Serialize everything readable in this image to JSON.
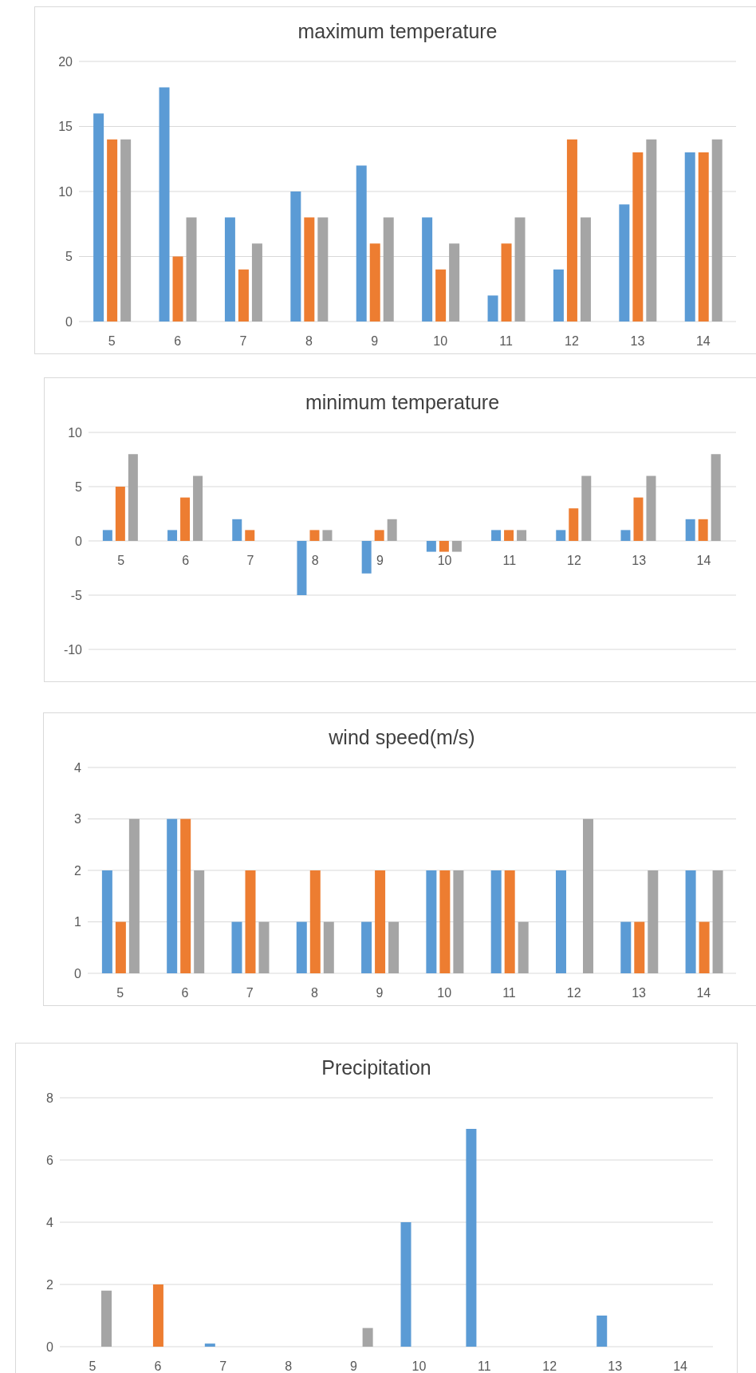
{
  "chart_data": [
    {
      "type": "bar",
      "title": "maximum temperature",
      "categories": [
        "5",
        "6",
        "7",
        "8",
        "9",
        "10",
        "11",
        "12",
        "13",
        "14"
      ],
      "series": [
        {
          "color": "#5b9bd5",
          "values": [
            16,
            18,
            8,
            10,
            12,
            8,
            2,
            4,
            9,
            13
          ]
        },
        {
          "color": "#ed7d31",
          "values": [
            14,
            5,
            4,
            8,
            6,
            4,
            6,
            14,
            13,
            13
          ]
        },
        {
          "color": "#a5a5a5",
          "values": [
            14,
            8,
            6,
            8,
            8,
            6,
            8,
            8,
            14,
            14
          ]
        }
      ],
      "ylim": [
        0,
        20
      ],
      "yticks": [
        0,
        5,
        10,
        15,
        20
      ],
      "grid": "y"
    },
    {
      "type": "bar",
      "title": "minimum temperature",
      "categories": [
        "5",
        "6",
        "7",
        "8",
        "9",
        "10",
        "11",
        "12",
        "13",
        "14"
      ],
      "series": [
        {
          "color": "#5b9bd5",
          "values": [
            1,
            1,
            2,
            -5,
            -3,
            -1,
            1,
            1,
            1,
            2
          ]
        },
        {
          "color": "#ed7d31",
          "values": [
            5,
            4,
            1,
            1,
            1,
            -1,
            1,
            3,
            4,
            2
          ]
        },
        {
          "color": "#a5a5a5",
          "values": [
            8,
            6,
            0,
            1,
            2,
            -1,
            1,
            6,
            6,
            8
          ]
        }
      ],
      "ylim": [
        -10,
        10
      ],
      "yticks": [
        -10,
        -5,
        0,
        5,
        10
      ],
      "grid": "y"
    },
    {
      "type": "bar",
      "title": "wind speed(m/s)",
      "categories": [
        "5",
        "6",
        "7",
        "8",
        "9",
        "10",
        "11",
        "12",
        "13",
        "14"
      ],
      "series": [
        {
          "color": "#5b9bd5",
          "values": [
            2,
            3,
            1,
            1,
            1,
            2,
            2,
            2,
            1,
            2
          ]
        },
        {
          "color": "#ed7d31",
          "values": [
            1,
            3,
            2,
            2,
            2,
            2,
            2,
            0,
            1,
            1
          ]
        },
        {
          "color": "#a5a5a5",
          "values": [
            3,
            2,
            1,
            1,
            1,
            2,
            1,
            3,
            2,
            2
          ]
        }
      ],
      "ylim": [
        0,
        4
      ],
      "yticks": [
        0,
        1,
        2,
        3,
        4
      ],
      "grid": "y"
    },
    {
      "type": "bar",
      "title": "Precipitation",
      "categories": [
        "5",
        "6",
        "7",
        "8",
        "9",
        "10",
        "11",
        "12",
        "13",
        "14"
      ],
      "series": [
        {
          "color": "#5b9bd5",
          "values": [
            0,
            0,
            0.1,
            0,
            0,
            4,
            7,
            0,
            1,
            0
          ]
        },
        {
          "color": "#ed7d31",
          "values": [
            0,
            2,
            0,
            0,
            0,
            0,
            0,
            0,
            0,
            0
          ]
        },
        {
          "color": "#a5a5a5",
          "values": [
            1.8,
            0,
            0,
            0,
            0.6,
            0,
            0,
            0,
            0,
            0
          ]
        }
      ],
      "ylim": [
        0,
        8
      ],
      "yticks": [
        0,
        2,
        4,
        6,
        8
      ],
      "grid": "y"
    }
  ]
}
